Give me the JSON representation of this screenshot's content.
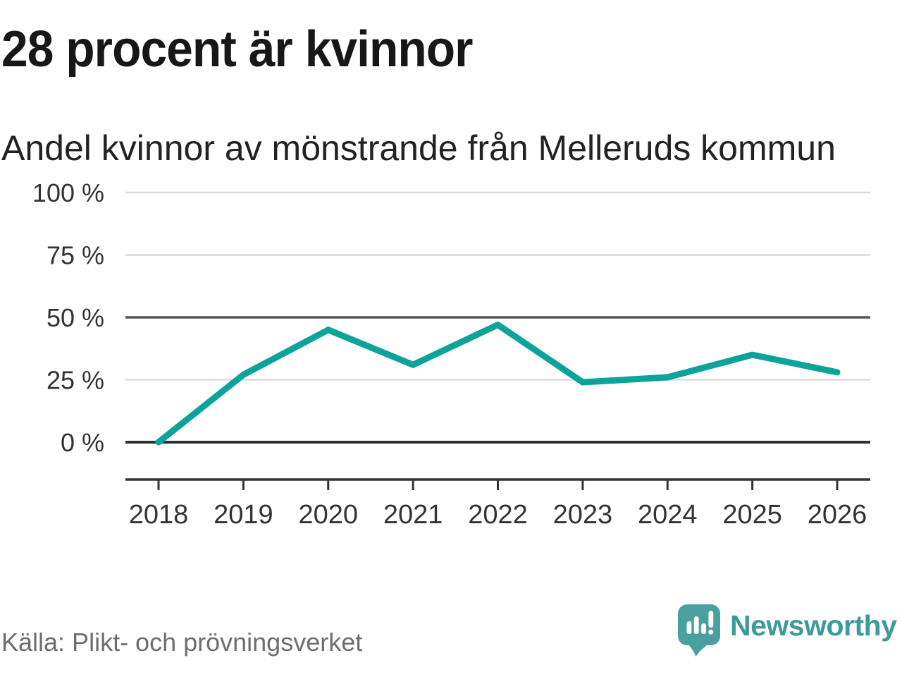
{
  "header": {
    "title": "28 procent är kvinnor",
    "subtitle": "Andel kvinnor av mönstrande från Melleruds kommun"
  },
  "chart_data": {
    "type": "line",
    "categories": [
      "2018",
      "2019",
      "2020",
      "2021",
      "2022",
      "2023",
      "2024",
      "2025",
      "2026"
    ],
    "values": [
      0,
      27,
      45,
      31,
      47,
      24,
      26,
      35,
      28
    ],
    "unit": "%",
    "title": "28 procent är kvinnor",
    "subtitle": "Andel kvinnor av mönstrande från Melleruds kommun",
    "xlabel": "",
    "ylabel": "",
    "ylim": [
      0,
      100
    ],
    "yticks": [
      0,
      25,
      50,
      75,
      100
    ],
    "ytick_suffix": " %",
    "grid": "horizontal",
    "legend": "none",
    "emphasized_gridlines": [
      0,
      50
    ],
    "line_color": "#0ca39a"
  },
  "footer": {
    "source": "Källa: Plikt- och prövningsverket",
    "brand": "Newsworthy"
  },
  "colors": {
    "accent": "#0ca39a",
    "brand_text_teal": "#3d9b98",
    "brand_bubble_teal": "#4aa09e",
    "text_dark": "#171717",
    "text_gray": "#6d6d72",
    "grid_light": "#dcdcdc",
    "grid_dark": "#565656",
    "axis": "#333333"
  }
}
